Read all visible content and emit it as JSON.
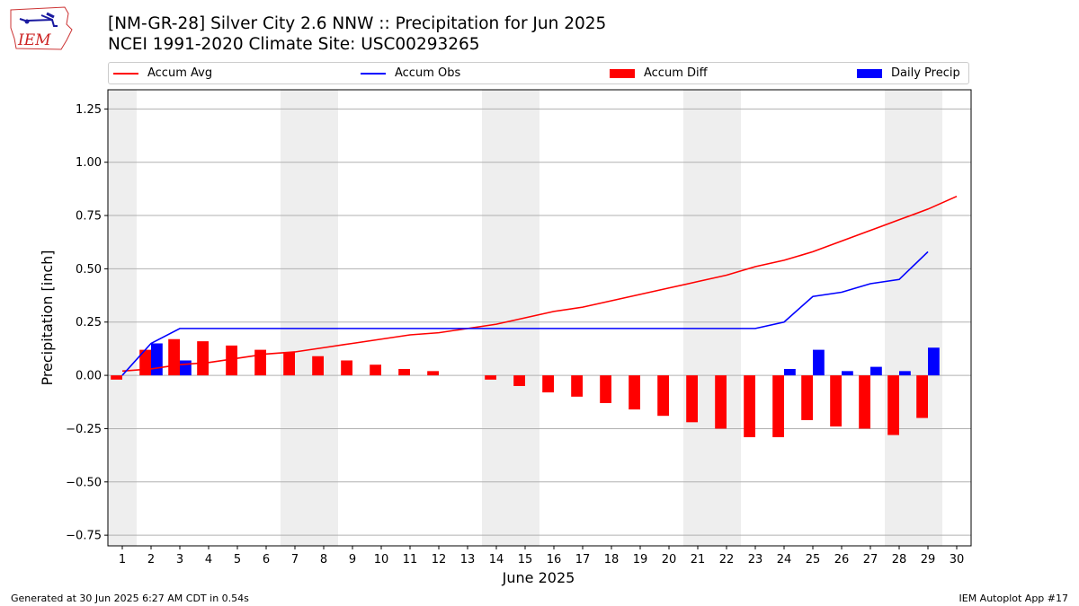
{
  "header": {
    "title": "[NM-GR-28] Silver City 2.6 NNW :: Precipitation for Jun 2025",
    "subtitle": "NCEI 1991-2020 Climate Site: USC00293265"
  },
  "logo": {
    "text": "IEM",
    "icon": "iem-iowa-logo-icon"
  },
  "footer": {
    "left": "Generated at 30 Jun 2025 6:27 AM CDT in 0.54s",
    "right": "IEM Autoplot App #17"
  },
  "legend": [
    {
      "label": "Accum Avg",
      "kind": "line",
      "color": "#ff0000"
    },
    {
      "label": "Accum Obs",
      "kind": "line",
      "color": "#0000ff"
    },
    {
      "label": "Accum Diff",
      "kind": "bar",
      "color": "#ff0000"
    },
    {
      "label": "Daily Precip",
      "kind": "bar",
      "color": "#0000ff"
    }
  ],
  "chart_data": {
    "type": "bar",
    "xlabel": "June 2025",
    "ylabel": "Precipitation [inch]",
    "ylim": [
      -0.8,
      1.34
    ],
    "xlim": [
      0.5,
      30.5
    ],
    "grid": true,
    "legend_position": "top",
    "x_ticks": [
      1,
      2,
      3,
      4,
      5,
      6,
      7,
      8,
      9,
      10,
      11,
      12,
      13,
      14,
      15,
      16,
      17,
      18,
      19,
      20,
      21,
      22,
      23,
      24,
      25,
      26,
      27,
      28,
      29,
      30
    ],
    "y_ticks": [
      {
        "value": -0.75,
        "label": "−0.75"
      },
      {
        "value": -0.5,
        "label": "−0.50"
      },
      {
        "value": -0.25,
        "label": "−0.25"
      },
      {
        "value": 0,
        "label": "0.00"
      },
      {
        "value": 0.25,
        "label": "0.25"
      },
      {
        "value": 0.5,
        "label": "0.50"
      },
      {
        "value": 0.75,
        "label": "0.75"
      },
      {
        "value": 1.0,
        "label": "1.00"
      },
      {
        "value": 1.25,
        "label": "1.25"
      }
    ],
    "weekend_shading": [
      [
        0.5,
        1.5
      ],
      [
        6.5,
        8.5
      ],
      [
        13.5,
        15.5
      ],
      [
        20.5,
        22.5
      ],
      [
        27.5,
        29.5
      ]
    ],
    "shading_color": "#eeeeee",
    "series": [
      {
        "name": "Accum Avg",
        "kind": "line",
        "color": "#ff0000",
        "x": [
          1,
          2,
          3,
          4,
          5,
          6,
          7,
          8,
          9,
          10,
          11,
          12,
          13,
          14,
          15,
          16,
          17,
          18,
          19,
          20,
          21,
          22,
          23,
          24,
          25,
          26,
          27,
          28,
          29,
          30
        ],
        "values": [
          0.02,
          0.03,
          0.05,
          0.06,
          0.08,
          0.1,
          0.11,
          0.13,
          0.15,
          0.17,
          0.19,
          0.2,
          0.22,
          0.24,
          0.27,
          0.3,
          0.32,
          0.35,
          0.38,
          0.41,
          0.44,
          0.47,
          0.51,
          0.54,
          0.58,
          0.63,
          0.68,
          0.73,
          0.78,
          0.84
        ]
      },
      {
        "name": "Accum Obs",
        "kind": "line",
        "color": "#0000ff",
        "x": [
          1,
          2,
          3,
          4,
          5,
          6,
          7,
          8,
          9,
          10,
          11,
          12,
          13,
          14,
          15,
          16,
          17,
          18,
          19,
          20,
          21,
          22,
          23,
          24,
          25,
          26,
          27,
          28,
          29
        ],
        "values": [
          0.0,
          0.15,
          0.22,
          0.22,
          0.22,
          0.22,
          0.22,
          0.22,
          0.22,
          0.22,
          0.22,
          0.22,
          0.22,
          0.22,
          0.22,
          0.22,
          0.22,
          0.22,
          0.22,
          0.22,
          0.22,
          0.22,
          0.22,
          0.25,
          0.37,
          0.39,
          0.43,
          0.45,
          0.58
        ]
      },
      {
        "name": "Accum Diff",
        "kind": "bar",
        "color": "#ff0000",
        "x": [
          1,
          2,
          3,
          4,
          5,
          6,
          7,
          8,
          9,
          10,
          11,
          12,
          13,
          14,
          15,
          16,
          17,
          18,
          19,
          20,
          21,
          22,
          23,
          24,
          25,
          26,
          27,
          28,
          29
        ],
        "values": [
          -0.02,
          0.12,
          0.17,
          0.16,
          0.14,
          0.12,
          0.11,
          0.09,
          0.07,
          0.05,
          0.03,
          0.02,
          0.0,
          -0.02,
          -0.05,
          -0.08,
          -0.1,
          -0.13,
          -0.16,
          -0.19,
          -0.22,
          -0.25,
          -0.29,
          -0.29,
          -0.21,
          -0.24,
          -0.25,
          -0.28,
          -0.2
        ]
      },
      {
        "name": "Daily Precip",
        "kind": "bar",
        "color": "#0000ff",
        "x": [
          1,
          2,
          3,
          4,
          5,
          6,
          7,
          8,
          9,
          10,
          11,
          12,
          13,
          14,
          15,
          16,
          17,
          18,
          19,
          20,
          21,
          22,
          23,
          24,
          25,
          26,
          27,
          28,
          29
        ],
        "values": [
          0.0,
          0.15,
          0.07,
          0,
          0,
          0,
          0,
          0,
          0,
          0,
          0,
          0,
          0,
          0,
          0,
          0,
          0,
          0,
          0,
          0,
          0,
          0,
          0,
          0.03,
          0.12,
          0.02,
          0.04,
          0.02,
          0.13
        ]
      }
    ]
  }
}
